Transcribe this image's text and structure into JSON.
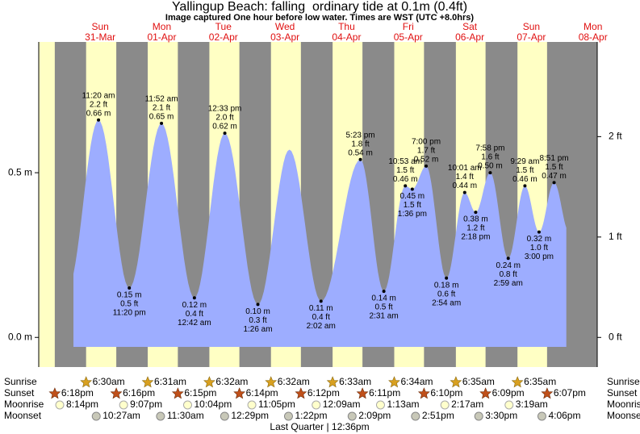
{
  "chart_data": {
    "type": "tide",
    "title": "Yallingup Beach: falling  ordinary tide at 0.1m (0.4ft)",
    "subtitle": "Image captured One hour before low water. Times are WST (UTC +8.0hrs)",
    "days": [
      {
        "weekday": "Sun",
        "date": "31-Mar"
      },
      {
        "weekday": "Mon",
        "date": "01-Apr"
      },
      {
        "weekday": "Tue",
        "date": "02-Apr"
      },
      {
        "weekday": "Wed",
        "date": "03-Apr"
      },
      {
        "weekday": "Thu",
        "date": "04-Apr"
      },
      {
        "weekday": "Fri",
        "date": "05-Apr"
      },
      {
        "weekday": "Sat",
        "date": "06-Apr"
      },
      {
        "weekday": "Sun",
        "date": "07-Apr"
      },
      {
        "weekday": "Mon",
        "date": "08-Apr"
      }
    ],
    "ylim": [
      -0.09,
      0.897
    ],
    "yticks": [
      {
        "value": 0,
        "label": "0.0 m"
      },
      {
        "value": 0.5,
        "label": "0.5 m"
      }
    ],
    "y2lim": [
      -0.295,
      2.943
    ],
    "y2ticks": [
      {
        "value": 0,
        "label": "0 ft"
      },
      {
        "value": 1,
        "label": "1 ft"
      },
      {
        "value": 2,
        "label": "2 ft"
      }
    ],
    "area_color": "#9dadff",
    "day_color": "#ffffc4",
    "night_color": "#8a8a8a",
    "extremes": [
      {
        "time": "11:20 am",
        "m": 0.66,
        "m_label": "0.66 m",
        "ft_label": "2.2 ft"
      },
      {
        "time": "11:20 pm",
        "m": 0.15,
        "m_label": "0.15 m",
        "ft_label": "0.5 ft"
      },
      {
        "time": "11:52 am",
        "m": 0.65,
        "m_label": "0.65 m",
        "ft_label": "2.1 ft"
      },
      {
        "time": "12:42 am",
        "m": 0.12,
        "m_label": "0.12 m",
        "ft_label": "0.4 ft"
      },
      {
        "time": "12:33 pm",
        "m": 0.62,
        "m_label": "0.62 m",
        "ft_label": "2.0 ft"
      },
      {
        "time": "1:26 am",
        "m": 0.1,
        "m_label": "0.10 m",
        "ft_label": "0.3 ft"
      },
      {
        "time": null,
        "m": 0.57,
        "m_label": null,
        "ft_label": null
      },
      {
        "time": "2:02 am",
        "m": 0.11,
        "m_label": "0.11 m",
        "ft_label": "0.4 ft"
      },
      {
        "time": "5:23 pm",
        "m": 0.54,
        "m_label": "0.54 m",
        "ft_label": "1.8 ft"
      },
      {
        "time": "2:31 am",
        "m": 0.14,
        "m_label": "0.14 m",
        "ft_label": "0.5 ft"
      },
      {
        "time": "10:53 am",
        "m": 0.46,
        "m_label": "0.46 m",
        "ft_label": "1.5 ft"
      },
      {
        "time": "1:36 pm",
        "m": 0.45,
        "m_label": "0.45 m",
        "ft_label": "1.5 ft"
      },
      {
        "time": "7:00 pm",
        "m": 0.52,
        "m_label": "0.52 m",
        "ft_label": "1.7 ft"
      },
      {
        "time": "2:54 am",
        "m": 0.18,
        "m_label": "0.18 m",
        "ft_label": "0.6 ft"
      },
      {
        "time": "10:01 am",
        "m": 0.44,
        "m_label": "0.44 m",
        "ft_label": "1.4 ft"
      },
      {
        "time": "2:18 pm",
        "m": 0.38,
        "m_label": "0.38 m",
        "ft_label": "1.2 ft"
      },
      {
        "time": "7:58 pm",
        "m": 0.5,
        "m_label": "0.50 m",
        "ft_label": "1.6 ft"
      },
      {
        "time": "2:59 am",
        "m": 0.24,
        "m_label": "0.24 m",
        "ft_label": "0.8 ft"
      },
      {
        "time": "9:29 am",
        "m": 0.46,
        "m_label": "0.46 m",
        "ft_label": "1.5 ft"
      },
      {
        "time": "3:00 pm",
        "m": 0.32,
        "m_label": "0.32 m",
        "ft_label": "1.0 ft"
      },
      {
        "time": "8:51 pm",
        "m": 0.47,
        "m_label": "0.47 m",
        "ft_label": "1.5 ft"
      }
    ],
    "events": [
      {
        "name": "Sunrise",
        "icon": "sunrise",
        "times": [
          "6:30am",
          "6:31am",
          "6:32am",
          "6:32am",
          "6:33am",
          "6:34am",
          "6:35am",
          "6:35am"
        ]
      },
      {
        "name": "Sunset",
        "icon": "sunset",
        "times": [
          "6:18pm",
          "6:16pm",
          "6:15pm",
          "6:14pm",
          "6:12pm",
          "6:11pm",
          "6:10pm",
          "6:09pm",
          "6:07pm"
        ]
      },
      {
        "name": "Moonrise",
        "icon": "moonrise",
        "times": [
          "8:14pm",
          "9:07pm",
          "10:04pm",
          "11:05pm",
          "12:09am",
          "1:13am",
          "2:17am",
          "3:19am"
        ]
      },
      {
        "name": "Moonset",
        "icon": "moonset",
        "times": [
          "10:27am",
          "11:30am",
          "12:29pm",
          "1:22pm",
          "2:09pm",
          "2:51pm",
          "3:30pm",
          "4:06pm"
        ]
      }
    ],
    "moon_phase": "Last Quarter | 12:36pm"
  }
}
